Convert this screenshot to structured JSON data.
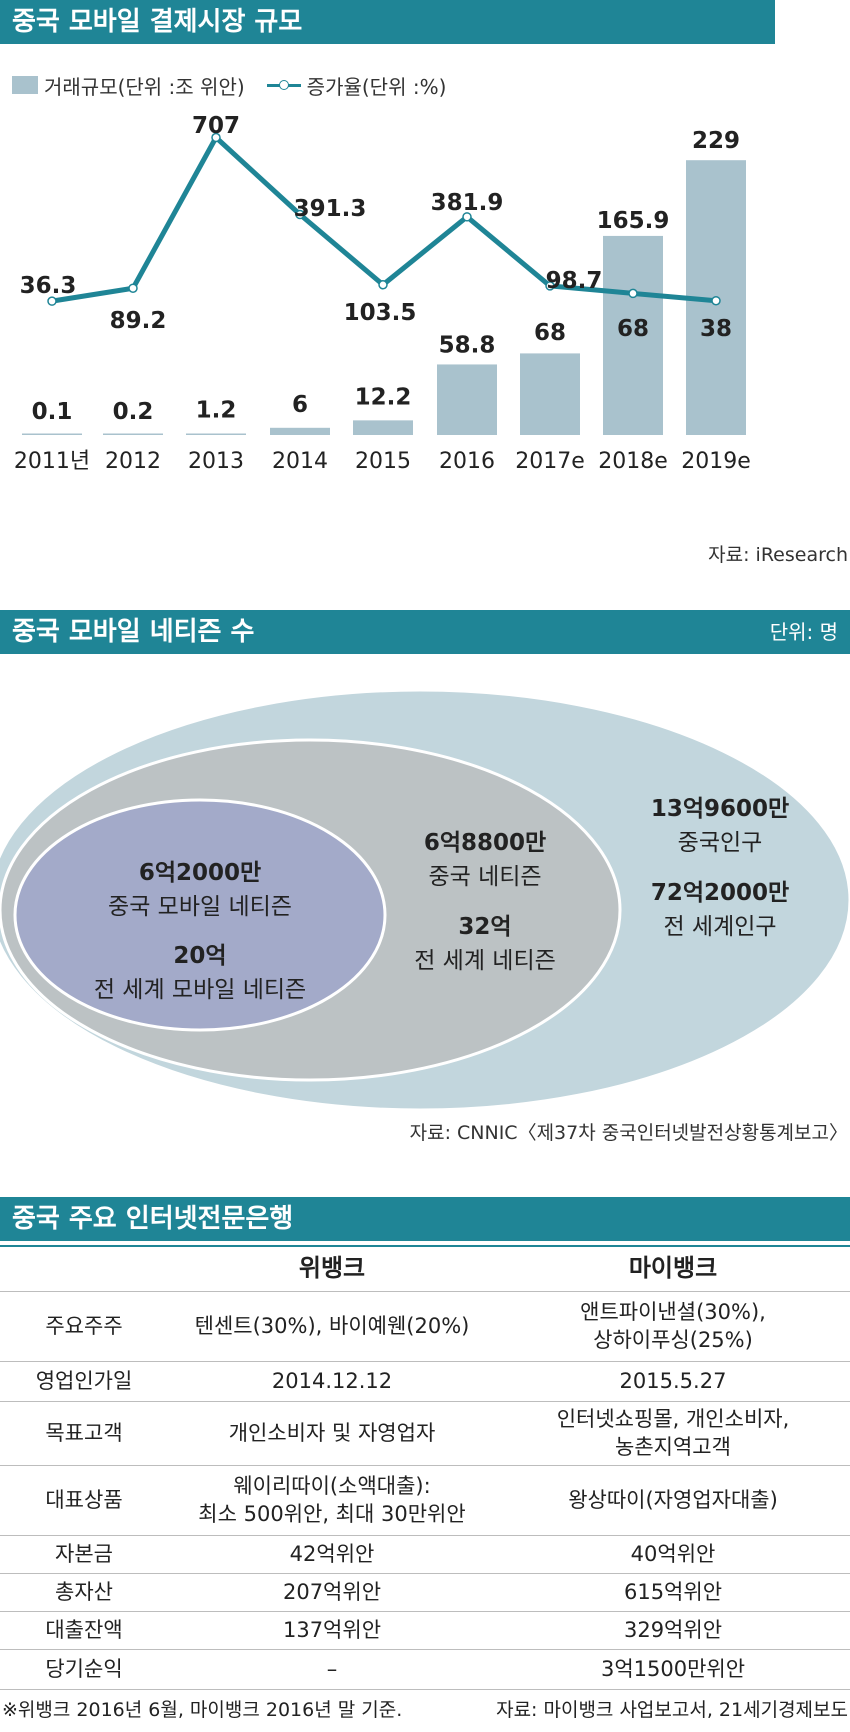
{
  "chart1": {
    "title": "중국 모바일 결제시장 규모",
    "legend": {
      "bar_label": "거래규모(단위 :조 위안)",
      "line_label": "증가율(단위 :%)"
    },
    "source": "자료: iResearch",
    "chart_data": {
      "type": "bar",
      "categories": [
        "2011년",
        "2012",
        "2013",
        "2014",
        "2015",
        "2016",
        "2017e",
        "2018e",
        "2019e"
      ],
      "series": [
        {
          "name": "거래규모(단위 :조 위안)",
          "type": "bar",
          "values": [
            0.1,
            0.2,
            1.2,
            6,
            12.2,
            58.8,
            68,
            165.9,
            229
          ],
          "labels": [
            "0.1",
            "0.2",
            "1.2",
            "6",
            "12.2",
            "58.8",
            "68",
            "165.9",
            "229"
          ]
        },
        {
          "name": "증가율(단위 :%)",
          "type": "line",
          "values": [
            36.3,
            89.2,
            707,
            391.3,
            103.5,
            381.9,
            98.7,
            68,
            38
          ],
          "labels": [
            "36.3",
            "89.2",
            "707",
            "391.3",
            "103.5",
            "381.9",
            "98.7",
            "68",
            "38"
          ]
        }
      ],
      "colors": {
        "bar": "#a9c2cd",
        "line": "#1f8596"
      }
    }
  },
  "chart2": {
    "title": "중국 모바일 네티즌 수",
    "unit": "단위: 명",
    "source": "자료: CNNIC〈제37차 중국인터넷발전상황통계보고〉",
    "outer": {
      "value1": "13억9600만",
      "label1": "중국인구",
      "value2": "72억2000만",
      "label2": "전 세계인구"
    },
    "middle": {
      "value1": "6억8800만",
      "label1": "중국 네티즌",
      "value2": "32억",
      "label2": "전 세계 네티즌"
    },
    "inner": {
      "value1": "6억2000만",
      "label1": "중국 모바일 네티즌",
      "value2": "20억",
      "label2": "전 세계 모바일 네티즌"
    },
    "colors": {
      "outer": "#c2d6dd",
      "middle": "#bcc2c4",
      "inner": "#a3aac9"
    }
  },
  "table": {
    "title": "중국 주요 인터넷전문은행",
    "headers": [
      "",
      "위뱅크",
      "마이뱅크"
    ],
    "rows": [
      {
        "label": "주요주주",
        "c1": [
          "텐센트(30%), 바이예웬(20%)"
        ],
        "c2": [
          "앤트파이낸셜(30%),",
          "상하이푸싱(25%)"
        ]
      },
      {
        "label": "영업인가일",
        "c1": [
          "2014.12.12"
        ],
        "c2": [
          "2015.5.27"
        ]
      },
      {
        "label": "목표고객",
        "c1": [
          "개인소비자 및 자영업자"
        ],
        "c2": [
          "인터넷쇼핑몰, 개인소비자,",
          "농촌지역고객"
        ]
      },
      {
        "label": "대표상품",
        "c1": [
          "웨이리따이(소액대출):",
          "최소 500위안, 최대 30만위안"
        ],
        "c2": [
          "왕상따이(자영업자대출)"
        ]
      },
      {
        "label": "자본금",
        "c1": [
          "42억위안"
        ],
        "c2": [
          "40억위안"
        ]
      },
      {
        "label": "총자산",
        "c1": [
          "207억위안"
        ],
        "c2": [
          "615억위안"
        ]
      },
      {
        "label": "대출잔액",
        "c1": [
          "137억위안"
        ],
        "c2": [
          "329억위안"
        ]
      },
      {
        "label": "당기순익",
        "c1": [
          "–"
        ],
        "c2": [
          "3억1500만위안"
        ]
      }
    ],
    "footnote_left": "※위뱅크 2016년 6월, 마이뱅크 2016년 말 기준.",
    "footnote_right": "자료: 마이뱅크 사업보고서, 21세기경제보도"
  }
}
